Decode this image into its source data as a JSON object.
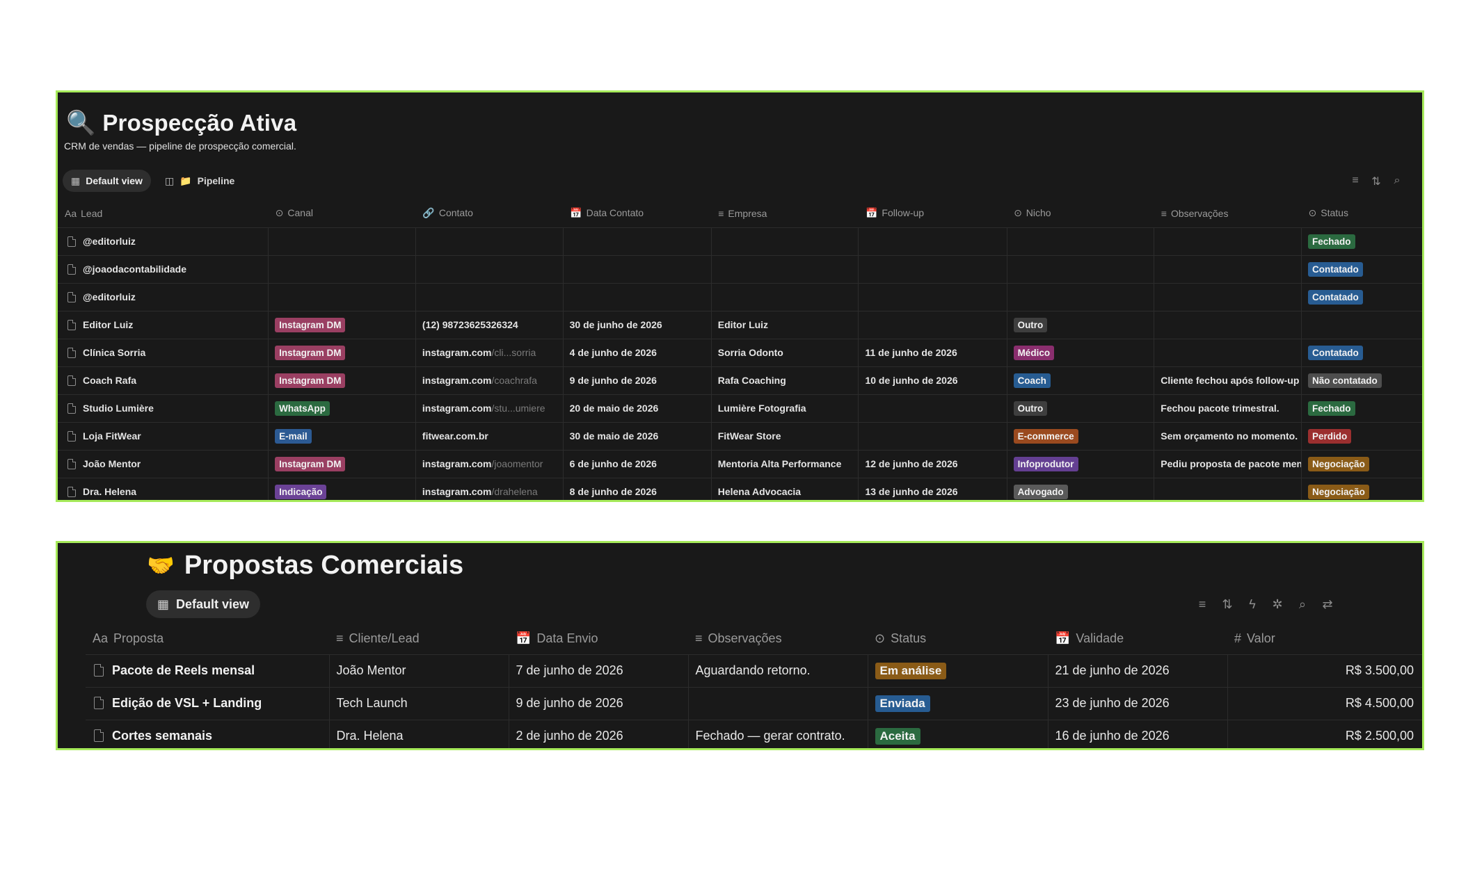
{
  "colors": {
    "accent_border": "#a6ea5a",
    "background": "#191919"
  },
  "crm": {
    "icon": "magnifier-icon",
    "title": "Prospecção Ativa",
    "description": "CRM de vendas — pipeline de prospecção comercial.",
    "tabs": [
      {
        "label": "Default view"
      },
      {
        "label": "Pipeline"
      }
    ],
    "columns": [
      "Lead",
      "Canal",
      "Contato",
      "Data Contato",
      "Empresa",
      "Follow-up",
      "Nicho",
      "Observações",
      "Status"
    ],
    "rows": [
      {
        "lead": "@editorluiz",
        "canal": "",
        "contato_main": "",
        "contato_dim": "",
        "data": "",
        "empresa": "",
        "followup": "",
        "nicho": "",
        "obs": "",
        "status": "Fechado"
      },
      {
        "lead": "@joaodacontabilidade",
        "canal": "",
        "contato_main": "",
        "contato_dim": "",
        "data": "",
        "empresa": "",
        "followup": "",
        "nicho": "",
        "obs": "",
        "status": "Contatado"
      },
      {
        "lead": "@editorluiz",
        "canal": "",
        "contato_main": "",
        "contato_dim": "",
        "data": "",
        "empresa": "",
        "followup": "",
        "nicho": "",
        "obs": "",
        "status": "Contatado"
      },
      {
        "lead": "Editor Luiz",
        "canal": "Instagram DM",
        "contato_main": "(12) 98723625326324",
        "contato_dim": "",
        "data": "30 de junho de 2026",
        "empresa": "Editor Luiz",
        "followup": "",
        "nicho": "Outro",
        "obs": "",
        "status": ""
      },
      {
        "lead": "Clínica Sorria",
        "canal": "Instagram DM",
        "contato_main": "instagram.com",
        "contato_dim": "/cli...sorria",
        "data": "4 de junho de 2026",
        "empresa": "Sorria Odonto",
        "followup": "11 de junho de 2026",
        "nicho": "Médico",
        "obs": "",
        "status": "Contatado"
      },
      {
        "lead": "Coach Rafa",
        "canal": "Instagram DM",
        "contato_main": "instagram.com",
        "contato_dim": "/coachrafa",
        "data": "9 de junho de 2026",
        "empresa": "Rafa Coaching",
        "followup": "10 de junho de 2026",
        "nicho": "Coach",
        "obs": "Cliente fechou após follow-up",
        "status": "Não contatado"
      },
      {
        "lead": "Studio Lumière",
        "canal": "WhatsApp",
        "contato_main": "instagram.com",
        "contato_dim": "/stu...umiere",
        "data": "20 de maio de 2026",
        "empresa": "Lumière Fotografia",
        "followup": "",
        "nicho": "Outro",
        "obs": "Fechou pacote trimestral.",
        "status": "Fechado"
      },
      {
        "lead": "Loja FitWear",
        "canal": "E-mail",
        "contato_main": "fitwear.com.br",
        "contato_dim": "",
        "data": "30 de maio de 2026",
        "empresa": "FitWear Store",
        "followup": "",
        "nicho": "E-commerce",
        "obs": "Sem orçamento no momento.",
        "status": "Perdido"
      },
      {
        "lead": "João Mentor",
        "canal": "Instagram DM",
        "contato_main": "instagram.com",
        "contato_dim": "/joaomentor",
        "data": "6 de junho de 2026",
        "empresa": "Mentoria Alta Performance",
        "followup": "12 de junho de 2026",
        "nicho": "Infoprodutor",
        "obs": "Pediu proposta de pacote mens",
        "status": "Negociação"
      },
      {
        "lead": "Dra. Helena",
        "canal": "Indicação",
        "contato_main": "instagram.com",
        "contato_dim": "/drahelena",
        "data": "8 de junho de 2026",
        "empresa": "Helena Advocacia",
        "followup": "13 de junho de 2026",
        "nicho": "Advogado",
        "obs": "",
        "status": "Negociação"
      }
    ]
  },
  "proposals": {
    "icon": "handshake-icon",
    "title": "Propostas Comerciais",
    "tab": "Default view",
    "columns": [
      "Proposta",
      "Cliente/Lead",
      "Data Envio",
      "Observações",
      "Status",
      "Validade",
      "Valor"
    ],
    "rows": [
      {
        "proposta": "Pacote de Reels mensal",
        "cliente": "João Mentor",
        "envio": "7 de junho de 2026",
        "obs": "Aguardando retorno.",
        "status": "Em análise",
        "validade": "21 de junho de 2026",
        "valor": "R$ 3.500,00"
      },
      {
        "proposta": "Edição de VSL + Landing",
        "cliente": "Tech Launch",
        "envio": "9 de junho de 2026",
        "obs": "",
        "status": "Enviada",
        "validade": "23 de junho de 2026",
        "valor": "R$ 4.500,00"
      },
      {
        "proposta": "Cortes semanais",
        "cliente": "Dra. Helena",
        "envio": "2 de junho de 2026",
        "obs": "Fechado — gerar contrato.",
        "status": "Aceita",
        "validade": "16 de junho de 2026",
        "valor": "R$ 2.500,00"
      }
    ]
  },
  "tag_colors": {
    "Instagram DM": "#9a3f62",
    "WhatsApp": "#2b6a40",
    "E-mail": "#2c5a93",
    "Indicação": "#6b4296",
    "Outro": "#3e3e3e",
    "Médico": "#8a2e6e",
    "Coach": "#275c92",
    "E-commerce": "#9a4a1f",
    "Infoprodutor": "#643f92",
    "Advogado": "#5a5a5a",
    "Fechado": "#2b6a40",
    "Contatado": "#285c92",
    "Não contatado": "#4e4e4e",
    "Perdido": "#9b2f2f",
    "Negociação": "#8a5b17",
    "Em análise": "#8a5b17",
    "Enviada": "#275c92",
    "Aceita": "#2b6a40"
  }
}
